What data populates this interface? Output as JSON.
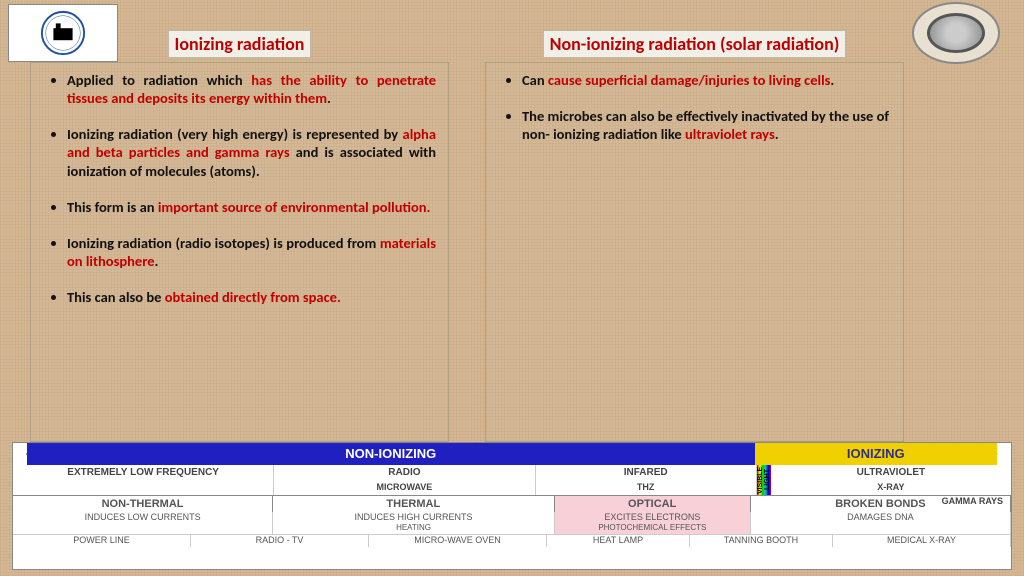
{
  "left": {
    "title": "Ionizing radiation",
    "bullets": [
      {
        "pre": "Applied to radiation which ",
        "hl": "has the ability to penetrate tissues and deposits its energy within them",
        "post": "."
      },
      {
        "pre": "Ionizing radiation (very high energy) is represented by ",
        "hl": "alpha and beta particles and gamma rays",
        "post": " and is associated with ionization of molecules (atoms)."
      },
      {
        "pre": "This form is an ",
        "hl": "important source of environmental pollution.",
        "post": ""
      },
      {
        "pre": "Ionizing radiation (radio isotopes) is produced from ",
        "hl": "materials on lithosphere",
        "post": "."
      },
      {
        "pre": "This can also be ",
        "hl": "obtained directly from space.",
        "post": ""
      }
    ]
  },
  "right": {
    "title": "Non-ionizing radiation (solar radiation)",
    "bullets": [
      {
        "pre": "Can ",
        "hl": "cause superficial damage/injuries to living cells",
        "post": "."
      },
      {
        "pre": "The microbes can also be effectively inactivated by the use of non- ionizing radiation like ",
        "hl": "ultraviolet rays",
        "post": "."
      }
    ]
  },
  "spectrum": {
    "noni_label": "NON-IONIZING",
    "ioni_label": "IONIZING",
    "bands": [
      "EXTREMELY LOW FREQUENCY",
      "RADIO",
      "INFARED",
      "ULTRAVIOLET"
    ],
    "sub": [
      "",
      "",
      "MICROWAVE",
      "THZ",
      "",
      "X-RAY",
      "GAMMA RAYS"
    ],
    "visible": "VISIBLE LIGHT",
    "cats": [
      "NON-THERMAL",
      "THERMAL",
      "OPTICAL",
      "BROKEN BONDS"
    ],
    "catsubs": [
      "INDUCES LOW CURRENTS",
      "INDUCES HIGH CURRENTS",
      "EXCITES ELECTRONS",
      "DAMAGES DNA"
    ],
    "catsubs2": [
      "",
      "HEATING",
      "PHOTOCHEMICAL EFFECTS",
      ""
    ],
    "examples": [
      "POWER LINE",
      "RADIO - TV",
      "MICRO-WAVE OVEN",
      "HEAT LAMP",
      "TANNING BOOTH",
      "MEDICAL X-RAY"
    ]
  },
  "colors": {
    "accent": "#c00000"
  }
}
